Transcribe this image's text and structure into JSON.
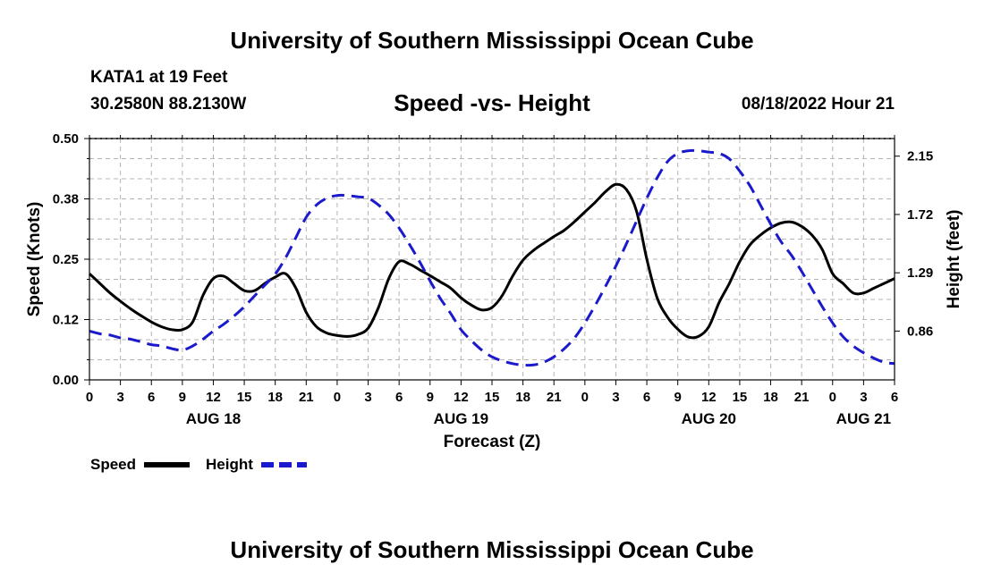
{
  "header": {
    "title": "University of Southern Mississippi Ocean Cube",
    "station": "KATA1 at 19 Feet",
    "coordinates": "30.2580N  88.2130W",
    "subtitle": "Speed -vs- Height",
    "datetime": "08/18/2022 Hour 21"
  },
  "footer": {
    "title": "University of Southern Mississippi Ocean Cube"
  },
  "legend": {
    "items": [
      {
        "label": "Speed",
        "color": "#000000",
        "style": "solid"
      },
      {
        "label": "Height",
        "color": "#1a1acc",
        "style": "dashed"
      }
    ]
  },
  "chart_data": {
    "type": "line",
    "title": "Speed -vs- Height",
    "xlabel": "Forecast (Z)",
    "ylabel": "Speed (Knots)",
    "y2label": "Height (feet)",
    "x_unit": "hours since AUG 18 00Z",
    "xlim": [
      0,
      78
    ],
    "ylim": [
      0,
      0.5
    ],
    "y2lim": [
      0.5,
      2.28
    ],
    "x_tick_values": [
      0,
      3,
      6,
      9,
      12,
      15,
      18,
      21,
      24,
      27,
      30,
      33,
      36,
      39,
      42,
      45,
      48,
      51,
      54,
      57,
      60,
      63,
      66,
      69,
      72,
      75,
      78
    ],
    "x_tick_labels": [
      "0",
      "3",
      "6",
      "9",
      "12",
      "15",
      "18",
      "21",
      "0",
      "3",
      "6",
      "9",
      "12",
      "15",
      "18",
      "21",
      "0",
      "3",
      "6",
      "9",
      "12",
      "15",
      "18",
      "21",
      "0",
      "3",
      "6"
    ],
    "date_labels": [
      {
        "x": 12,
        "label": "AUG 18"
      },
      {
        "x": 36,
        "label": "AUG 19"
      },
      {
        "x": 60,
        "label": "AUG 20"
      },
      {
        "x": 75,
        "label": "AUG 21"
      }
    ],
    "y_ticks": [
      0.0,
      0.125,
      0.25,
      0.375,
      0.5
    ],
    "y_tick_labels": [
      "0.00",
      "0.12",
      "0.25",
      "0.38",
      "0.50"
    ],
    "y2_ticks": [
      0.86,
      1.29,
      1.72,
      2.15
    ],
    "y2_tick_labels": [
      "0.86",
      "1.29",
      "1.72",
      "2.15"
    ],
    "series": [
      {
        "name": "Speed",
        "axis": "left",
        "color": "#000000",
        "x": [
          0,
          1,
          2,
          3,
          4,
          5,
          6,
          7,
          8,
          9,
          10,
          11,
          12,
          13,
          14,
          15,
          16,
          17,
          18,
          19,
          20,
          21,
          22,
          23,
          24,
          25,
          26,
          27,
          28,
          29,
          30,
          31,
          32,
          33,
          34,
          35,
          36,
          37,
          38,
          39,
          40,
          41,
          42,
          43,
          44,
          45,
          46,
          47,
          48,
          49,
          50,
          51,
          52,
          53,
          54,
          55,
          56,
          57,
          58,
          59,
          60,
          61,
          62,
          63,
          64,
          65,
          66,
          67,
          68,
          69,
          70,
          71,
          72,
          73,
          74,
          75,
          76,
          77,
          78
        ],
        "values": [
          0.22,
          0.2,
          0.18,
          0.163,
          0.147,
          0.133,
          0.12,
          0.11,
          0.104,
          0.104,
          0.12,
          0.175,
          0.21,
          0.215,
          0.2,
          0.185,
          0.185,
          0.2,
          0.213,
          0.22,
          0.19,
          0.14,
          0.11,
          0.097,
          0.092,
          0.09,
          0.094,
          0.107,
          0.15,
          0.21,
          0.245,
          0.24,
          0.228,
          0.216,
          0.203,
          0.19,
          0.17,
          0.155,
          0.145,
          0.15,
          0.175,
          0.215,
          0.248,
          0.268,
          0.283,
          0.297,
          0.31,
          0.328,
          0.348,
          0.368,
          0.39,
          0.405,
          0.395,
          0.35,
          0.25,
          0.17,
          0.13,
          0.105,
          0.089,
          0.09,
          0.11,
          0.16,
          0.2,
          0.245,
          0.28,
          0.3,
          0.315,
          0.325,
          0.327,
          0.318,
          0.3,
          0.27,
          0.22,
          0.2,
          0.18,
          0.18,
          0.19,
          0.2,
          0.21
        ]
      },
      {
        "name": "Height",
        "axis": "right",
        "color": "#1a1acc",
        "x": [
          0,
          1,
          2,
          3,
          4,
          5,
          6,
          7,
          8,
          9,
          10,
          11,
          12,
          13,
          14,
          15,
          16,
          17,
          18,
          19,
          20,
          21,
          22,
          23,
          24,
          25,
          26,
          27,
          28,
          29,
          30,
          31,
          32,
          33,
          34,
          35,
          36,
          37,
          38,
          39,
          40,
          41,
          42,
          43,
          44,
          45,
          46,
          47,
          48,
          49,
          50,
          51,
          52,
          53,
          54,
          55,
          56,
          57,
          58,
          59,
          60,
          61,
          62,
          63,
          64,
          65,
          66,
          67,
          68,
          69,
          70,
          71,
          72,
          73,
          74,
          75,
          76,
          77,
          78
        ],
        "values": [
          0.86,
          0.84,
          0.83,
          0.81,
          0.8,
          0.78,
          0.76,
          0.75,
          0.73,
          0.72,
          0.75,
          0.8,
          0.86,
          0.91,
          0.97,
          1.04,
          1.12,
          1.2,
          1.28,
          1.4,
          1.55,
          1.7,
          1.79,
          1.84,
          1.86,
          1.86,
          1.85,
          1.84,
          1.79,
          1.72,
          1.62,
          1.5,
          1.37,
          1.23,
          1.1,
          0.99,
          0.87,
          0.79,
          0.72,
          0.67,
          0.64,
          0.62,
          0.61,
          0.61,
          0.63,
          0.67,
          0.73,
          0.81,
          0.92,
          1.05,
          1.19,
          1.34,
          1.5,
          1.67,
          1.84,
          1.99,
          2.11,
          2.17,
          2.19,
          2.19,
          2.18,
          2.17,
          2.13,
          2.04,
          1.93,
          1.79,
          1.65,
          1.52,
          1.42,
          1.3,
          1.17,
          1.04,
          0.92,
          0.82,
          0.75,
          0.7,
          0.66,
          0.63,
          0.62
        ]
      }
    ]
  }
}
